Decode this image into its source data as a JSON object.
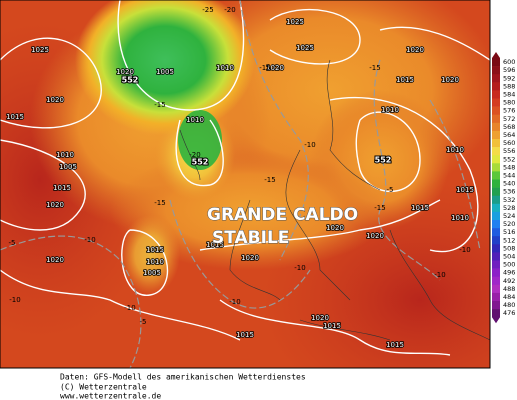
{
  "map": {
    "headline": [
      "GRANDE CALDO",
      "STABILE"
    ],
    "pressure_labels": [
      "1025",
      "1020",
      "1015",
      "1010",
      "1005",
      "1015",
      "1020",
      "1015",
      "1010",
      "1005",
      "1020",
      "1020",
      "1005",
      "1010",
      "1010",
      "1025",
      "1025",
      "1020",
      "1020",
      "1015",
      "1010",
      "1020",
      "1010",
      "1015",
      "1010",
      "1015",
      "1020",
      "1020",
      "1015",
      "1020",
      "1020",
      "1015",
      "1015",
      "1015"
    ],
    "temperature_labels": [
      "-25",
      "-20",
      "-15",
      "-15",
      "-10",
      "-15",
      "-20",
      "-15",
      "-10",
      "-5",
      "-10",
      "-5",
      "-10",
      "-10",
      "-15",
      "-10",
      "-5",
      "-10",
      "-10",
      "-15"
    ],
    "low_labels": [
      "552",
      "552",
      "552"
    ]
  },
  "legend": {
    "values": [
      600,
      596,
      592,
      588,
      584,
      580,
      576,
      572,
      568,
      564,
      560,
      556,
      552,
      548,
      544,
      540,
      536,
      532,
      528,
      524,
      520,
      516,
      512,
      508,
      504,
      500,
      496,
      492,
      488,
      484,
      480,
      476
    ],
    "colors": [
      "#7a0a14",
      "#8c0f18",
      "#a0141c",
      "#b41c1c",
      "#c82a1e",
      "#d43c20",
      "#dc5222",
      "#e26a26",
      "#e8842a",
      "#eea030",
      "#f2c038",
      "#f4dc48",
      "#e0e840",
      "#a8dc3a",
      "#5cc83a",
      "#2fb23e",
      "#22a050",
      "#1c9e8a",
      "#1ab0c0",
      "#1aa0e0",
      "#2080f0",
      "#1e5ce0",
      "#2040c8",
      "#3028b8",
      "#5020b8",
      "#7020c0",
      "#8c20c8",
      "#a028c8",
      "#b030c0",
      "#9820a8",
      "#801890",
      "#601070"
    ]
  },
  "footer": [
    "Daten: GFS-Modell des amerikanischen Wetterdienstes",
    "(C) Wetterzentrale",
    "www.wetterzentrale.de"
  ]
}
